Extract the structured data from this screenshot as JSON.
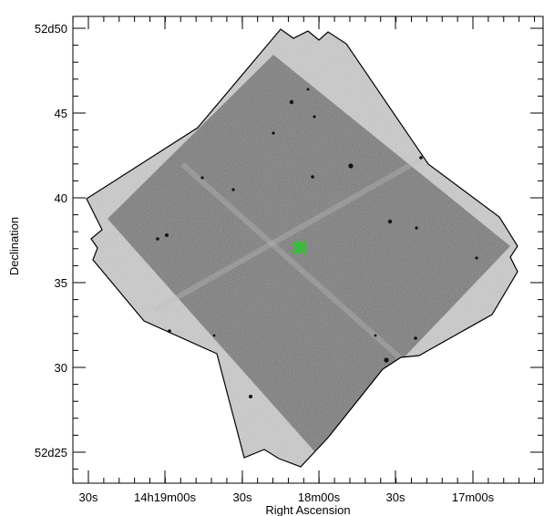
{
  "figure": {
    "xlabel": "Right Ascension",
    "ylabel": "Declination",
    "x_ticks": [
      "30s",
      "14h19m00s",
      "30s",
      "18m00s",
      "30s",
      "17m00s"
    ],
    "y_ticks": [
      "52d25",
      "30",
      "35",
      "40",
      "45",
      "52d50"
    ]
  },
  "colors": {
    "frame": "#000000",
    "footprint_outline": "#000000",
    "field_texture": "#5a5a5a",
    "marker": "#22cc22"
  },
  "marker": {
    "icon": "green-cross-marker"
  }
}
